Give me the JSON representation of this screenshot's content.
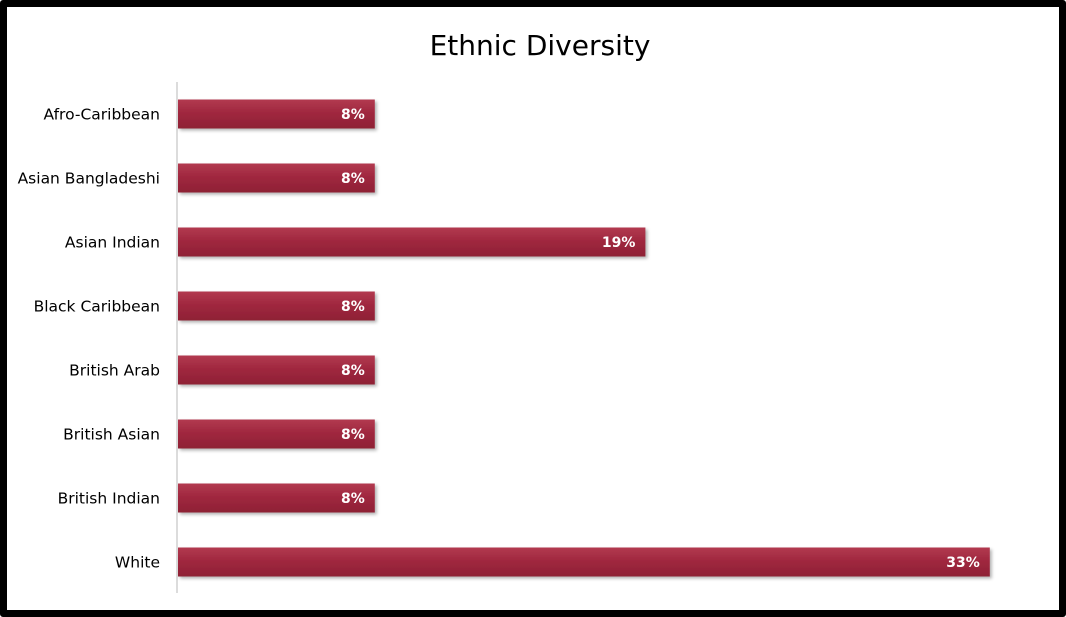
{
  "chart_data": {
    "type": "bar",
    "orientation": "horizontal",
    "title": "Ethnic Diversity",
    "xlabel": "",
    "ylabel": "",
    "categories": [
      "Afro-Caribbean",
      "Asian Bangladeshi",
      "Asian Indian",
      "Black Caribbean",
      "British Arab",
      "British Asian",
      "British Indian",
      "White"
    ],
    "values": [
      8,
      8,
      19,
      8,
      8,
      8,
      8,
      33
    ],
    "value_labels": [
      "8%",
      "8%",
      "19%",
      "8%",
      "8%",
      "8%",
      "8%",
      "33%"
    ],
    "unit": "%",
    "xlim": [
      0,
      33
    ],
    "grid": false,
    "legend": "none",
    "bar_color": "#a0283f"
  }
}
